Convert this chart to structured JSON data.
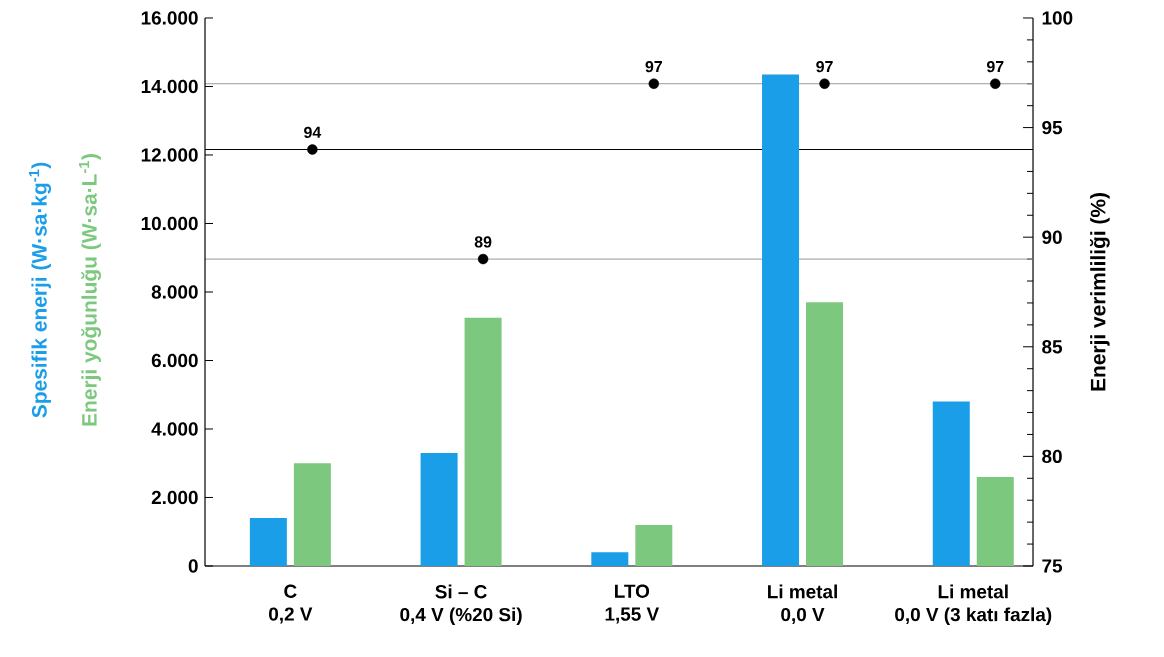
{
  "chart_data": {
    "type": "bar",
    "categories": [
      "C\n0,2 V",
      "Si – C\n0,4 V (%20 Si)",
      "LTO\n1,55 V",
      "Li metal\n0,0 V",
      "Li metal\n0,0 V (3 katı fazla)"
    ],
    "series": [
      {
        "name": "Spesifik enerji (W·sa·kg$^{-1}$)",
        "color": "#1a9ee8",
        "values": [
          1400,
          3300,
          400,
          14350,
          4800
        ]
      },
      {
        "name": "Enerji yoğunluğu (W·sa·L$^{-1}$)",
        "color": "#7dc87f",
        "values": [
          3000,
          7250,
          1200,
          7700,
          2600
        ]
      },
      {
        "type": "scatter",
        "axis": "y2",
        "color": "#000000",
        "marker": "circle",
        "x": [
          "C\n0,2 V",
          "Si – C\n0,4 V (%20 Si)",
          "LTO\n1,55 V",
          "Li metal\n0,0 V",
          "Li metal\n0,0 V (3 katı fazla)"
        ],
        "values": [
          94,
          89,
          97,
          97,
          97
        ],
        "value_labels": [
          "94",
          "89",
          "97",
          "97",
          "97"
        ]
      }
    ],
    "ylim": [
      0,
      16000
    ],
    "yticks": [
      0,
      {
        "value": 2000,
        "label": "2.000"
      },
      {
        "value": 4000,
        "label": "4.000"
      },
      {
        "value": 6000,
        "label": "6.000"
      },
      {
        "value": 8000,
        "label": "8.000"
      },
      {
        "value": 10000,
        "label": "10.000"
      },
      {
        "value": 12000,
        "label": "12.000"
      },
      {
        "value": 14000,
        "label": "14.000"
      },
      {
        "value": 16000,
        "label": "16.000"
      }
    ],
    "y2label": "Enerji verimliliği (%)",
    "y2lim": [
      75,
      100
    ],
    "y2ticks": [
      75,
      {
        "value": 76,
        "label": null
      },
      {
        "value": 77,
        "label": null
      },
      {
        "value": 78,
        "label": null
      },
      {
        "value": 79,
        "label": null
      },
      80,
      {
        "value": 81,
        "label": null
      },
      {
        "value": 82,
        "label": null
      },
      {
        "value": 83,
        "label": null
      },
      {
        "value": 84,
        "label": null
      },
      85,
      {
        "value": 86,
        "label": null
      },
      {
        "value": 87,
        "label": null
      },
      {
        "value": 88,
        "label": null
      },
      {
        "value": 89,
        "label": null
      },
      90,
      {
        "value": 91,
        "label": null
      },
      {
        "value": 92,
        "label": null
      },
      {
        "value": 93,
        "label": null
      },
      {
        "value": 94,
        "label": null
      },
      95,
      {
        "value": 96,
        "label": null
      },
      {
        "value": 97,
        "label": null
      },
      {
        "value": 98,
        "label": null
      },
      {
        "value": 99,
        "label": null
      },
      100
    ],
    "ref_lines": [
      {
        "axis": "y2",
        "value": 94,
        "color": "#000000"
      },
      {
        "axis": "y2",
        "value": 89,
        "color": "#999999"
      },
      {
        "axis": "y2",
        "value": 97,
        "color": "#999999"
      }
    ],
    "grid": false
  }
}
